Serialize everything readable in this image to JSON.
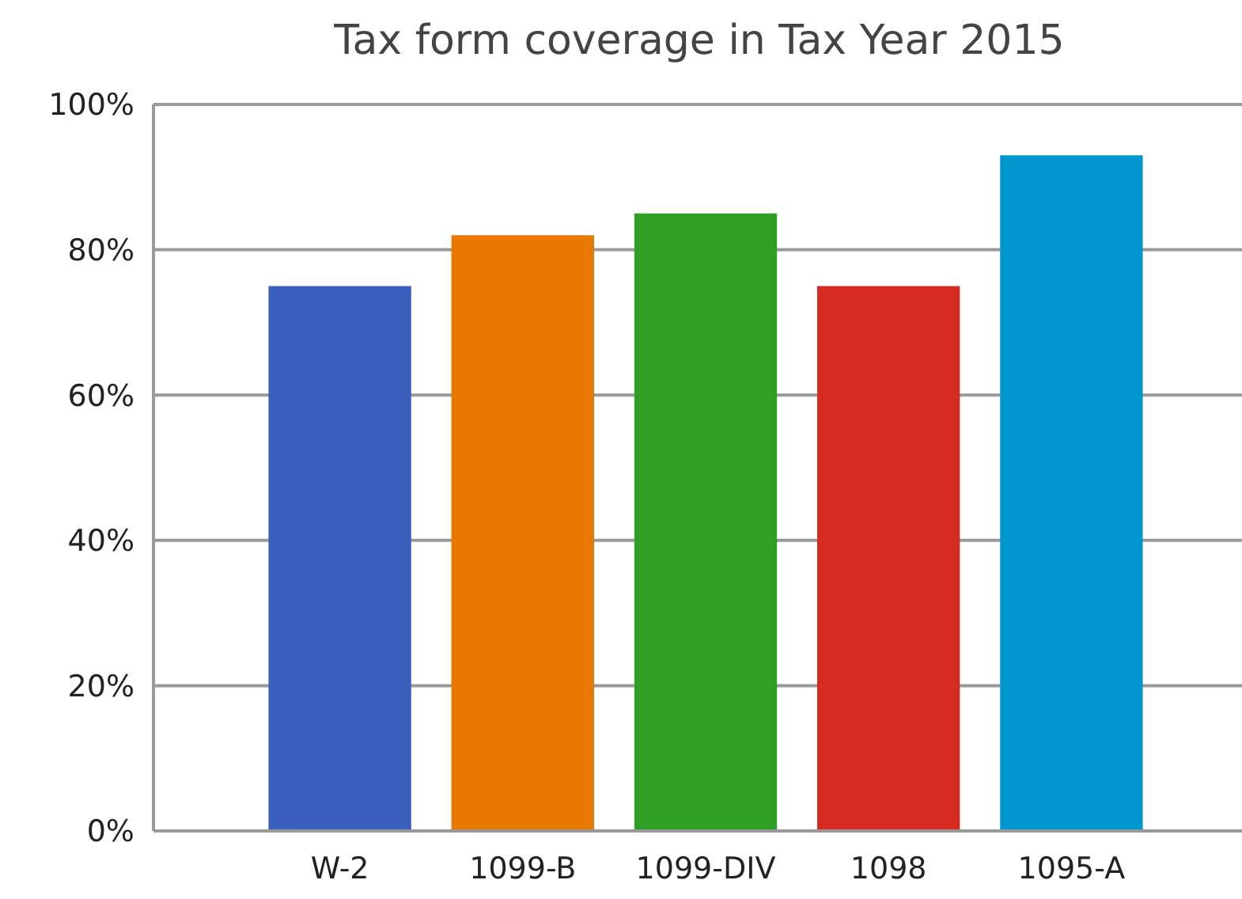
{
  "chart_data": {
    "type": "bar",
    "title": "Tax form coverage in Tax Year 2015",
    "categories": [
      "W-2",
      "1099-B",
      "1099-DIV",
      "1098",
      "1095-A"
    ],
    "values": [
      75,
      82,
      85,
      75,
      93
    ],
    "colors": [
      "#3a5fbf",
      "#e87800",
      "#2e9e25",
      "#d62b20",
      "#0097d0"
    ],
    "ylim": [
      0,
      100
    ],
    "yticks": [
      {
        "value": 0,
        "label": "0%"
      },
      {
        "value": 20,
        "label": "20%"
      },
      {
        "value": 40,
        "label": "40%"
      },
      {
        "value": 60,
        "label": "60%"
      },
      {
        "value": 80,
        "label": "80%"
      },
      {
        "value": 100,
        "label": "100%"
      }
    ],
    "grid": "y"
  }
}
